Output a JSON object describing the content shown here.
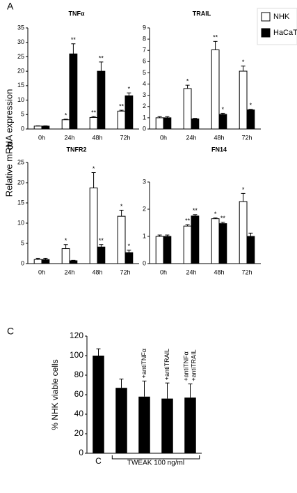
{
  "panel_labels": [
    "A",
    "B",
    "C"
  ],
  "y_label": "Relative mRNA expression",
  "chart_data": [
    {
      "type": "grouped_bar",
      "title": "TNFα",
      "categories": [
        "0h",
        "24h",
        "48h",
        "72h"
      ],
      "ylim": [
        0,
        35
      ],
      "yticks": [
        0,
        5,
        10,
        15,
        20,
        25,
        30,
        35
      ],
      "series": [
        {
          "name": "NHK",
          "color": "#ffffff",
          "values": [
            1,
            3.2,
            4,
            6.2
          ],
          "errors": [
            0.1,
            0.2,
            0.3,
            0.3
          ],
          "annotations": [
            null,
            "*",
            "**",
            "**"
          ]
        },
        {
          "name": "HaCaT",
          "color": "#000000",
          "values": [
            1,
            26,
            20,
            11.5
          ],
          "errors": [
            0.1,
            3.5,
            3.2,
            1.0
          ],
          "annotations": [
            null,
            "**",
            "**",
            "*"
          ]
        }
      ]
    },
    {
      "type": "grouped_bar",
      "title": "TRAIL",
      "categories": [
        "0h",
        "24h",
        "48h",
        "72h"
      ],
      "ylim": [
        0,
        9
      ],
      "yticks": [
        0,
        1,
        2,
        3,
        4,
        5,
        6,
        7,
        8,
        9
      ],
      "series": [
        {
          "name": "NHK",
          "color": "#ffffff",
          "values": [
            1,
            3.6,
            7.05,
            5.15
          ],
          "errors": [
            0.1,
            0.3,
            0.75,
            0.45
          ],
          "annotations": [
            null,
            "*",
            "**",
            "*"
          ]
        },
        {
          "name": "HaCaT",
          "color": "#000000",
          "values": [
            1,
            0.9,
            1.3,
            1.7
          ],
          "errors": [
            0.1,
            0.05,
            0.1,
            0.05
          ],
          "annotations": [
            null,
            null,
            "*",
            "*"
          ]
        }
      ]
    },
    {
      "type": "grouped_bar",
      "title": "TNFR2",
      "categories": [
        "0h",
        "24h",
        "48h",
        "72h"
      ],
      "ylim": [
        0,
        25
      ],
      "yticks": [
        0,
        5,
        10,
        15,
        20,
        25
      ],
      "series": [
        {
          "name": "NHK",
          "color": "#ffffff",
          "values": [
            1,
            3.7,
            18.7,
            11.7
          ],
          "errors": [
            0.3,
            1,
            3.8,
            1.5
          ],
          "annotations": [
            null,
            "*",
            "*",
            "*"
          ]
        },
        {
          "name": "HaCaT",
          "color": "#000000",
          "values": [
            1,
            0.7,
            4.1,
            2.7
          ],
          "errors": [
            0.3,
            0.1,
            0.6,
            0.6
          ],
          "annotations": [
            null,
            null,
            "**",
            "*"
          ]
        }
      ]
    },
    {
      "type": "grouped_bar",
      "title": "FN14",
      "categories": [
        "0h",
        "24h",
        "48h",
        "72h"
      ],
      "ylim": [
        0,
        3
      ],
      "yticks": [
        0,
        1,
        2,
        3
      ],
      "series": [
        {
          "name": "NHK",
          "color": "#ffffff",
          "values": [
            1,
            1.38,
            1.65,
            2.28
          ],
          "errors": [
            0.05,
            0.05,
            0.03,
            0.3
          ],
          "annotations": [
            null,
            "**",
            "*",
            "*"
          ]
        },
        {
          "name": "HaCaT",
          "color": "#000000",
          "values": [
            1,
            1.75,
            1.47,
            1.0
          ],
          "errors": [
            0.05,
            0.05,
            0.05,
            0.12
          ],
          "annotations": [
            null,
            "**",
            "**",
            null
          ]
        }
      ]
    },
    {
      "type": "bar",
      "y_label": "% NHK viable cells",
      "categories": [
        "C",
        null,
        null,
        null,
        null
      ],
      "bar_labels": [
        [],
        [],
        [
          "+antiTNFα"
        ],
        [
          "+antiTRAIL"
        ],
        [
          "+antiTNFα",
          "+antiTRAIL"
        ]
      ],
      "group_label": "TWEAK 100 ng/ml",
      "ylim": [
        0,
        120
      ],
      "yticks": [
        0,
        20,
        40,
        60,
        80,
        100,
        120
      ],
      "color": "#000000",
      "values": [
        100,
        67,
        58,
        56,
        57
      ],
      "errors": [
        7,
        9,
        16,
        16,
        14
      ]
    }
  ]
}
